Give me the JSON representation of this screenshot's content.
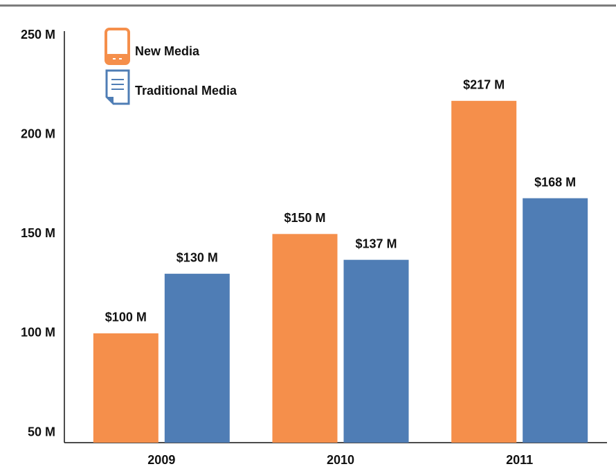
{
  "chart_data": {
    "type": "bar",
    "categories": [
      "2009",
      "2010",
      "2011"
    ],
    "series": [
      {
        "name": "New Media",
        "color": "#f58f4b",
        "values": [
          100,
          150,
          217
        ],
        "value_labels": [
          "$100 M",
          "$150 M",
          "$217 M"
        ]
      },
      {
        "name": "Traditional Media",
        "color": "#4f7db5",
        "values": [
          130,
          137,
          168
        ],
        "value_labels": [
          "$130 M",
          "$137 M",
          "$168 M"
        ]
      }
    ],
    "ylim": [
      45,
      250
    ],
    "yticks": [
      {
        "value": 50,
        "label": "50 M"
      },
      {
        "value": 100,
        "label": "100 M"
      },
      {
        "value": 150,
        "label": "150 M"
      },
      {
        "value": 200,
        "label": "200 M"
      },
      {
        "value": 250,
        "label": "250 M"
      }
    ],
    "grid": false,
    "legend": "top-left"
  }
}
